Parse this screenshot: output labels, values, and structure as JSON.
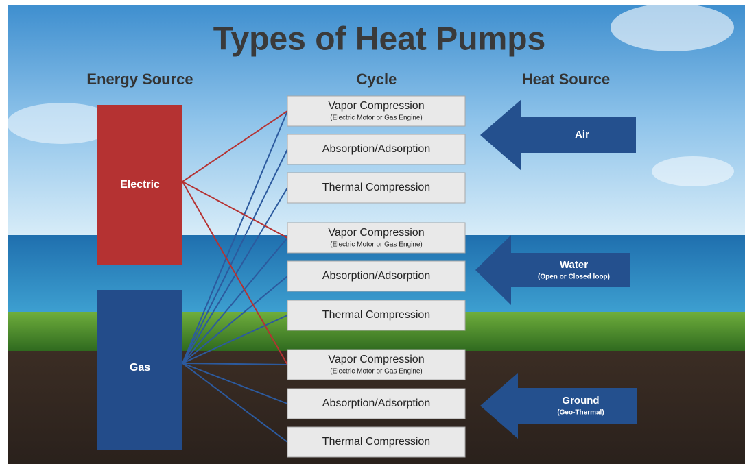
{
  "title": "Types of Heat Pumps",
  "columns": [
    "Energy Source",
    "Cycle",
    "Heat Source"
  ],
  "energy_sources": [
    {
      "label": "Electric"
    },
    {
      "label": "Gas"
    }
  ],
  "cycles": [
    {
      "label": "Vapor Compression",
      "note": "(Electric Motor or Gas Engine)"
    },
    {
      "label": "Absorption/Adsorption"
    },
    {
      "label": "Thermal Compression"
    },
    {
      "label": "Vapor Compression",
      "note": "(Electric Motor or Gas Engine)"
    },
    {
      "label": "Absorption/Adsorption"
    },
    {
      "label": "Thermal Compression"
    },
    {
      "label": "Vapor Compression",
      "note": "(Electric Motor or Gas Engine)"
    },
    {
      "label": "Absorption/Adsorption"
    },
    {
      "label": "Thermal Compression"
    }
  ],
  "heat_sources": [
    {
      "label": "Air"
    },
    {
      "label": "Water",
      "note": "(Open or Closed loop)"
    },
    {
      "label": "Ground",
      "note": "(Geo-Thermal)"
    }
  ]
}
